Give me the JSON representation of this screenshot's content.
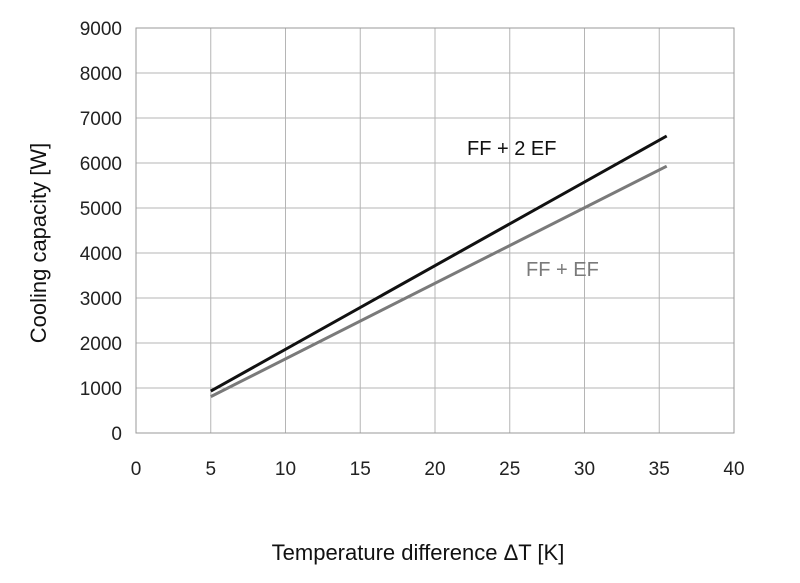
{
  "chart_data": {
    "type": "line",
    "xlabel": "Temperature difference ΔT [K]",
    "ylabel": "Cooling capacity  [W]",
    "xlim": [
      0,
      40
    ],
    "ylim": [
      0,
      9000
    ],
    "x_ticks": [
      "0",
      "5",
      "10",
      "15",
      "20",
      "25",
      "30",
      "35",
      "40"
    ],
    "y_ticks": [
      "0",
      "1000",
      "2000",
      "3000",
      "4000",
      "5000",
      "6000",
      "7000",
      "8000",
      "9000"
    ],
    "grid": true,
    "series": [
      {
        "name": "FF + 2 EF",
        "color": "#111111",
        "x": [
          5,
          35.5
        ],
        "y": [
          930,
          6600
        ]
      },
      {
        "name": "FF + EF",
        "color": "#7a7a7a",
        "x": [
          5,
          35.5
        ],
        "y": [
          810,
          5930
        ]
      }
    ]
  }
}
